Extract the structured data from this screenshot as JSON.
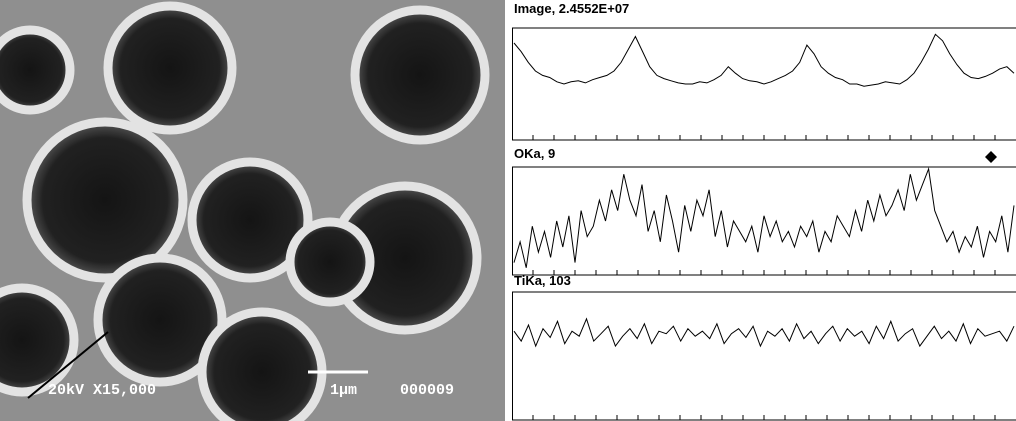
{
  "sem_image": {
    "label": "20kV X15,000",
    "scale_label": "1μm",
    "image_id": "000009"
  },
  "profiles": [
    {
      "title": "Image, 2.4552E+07",
      "values": [
        88,
        80,
        70,
        62,
        58,
        56,
        52,
        50,
        52,
        53,
        51,
        54,
        56,
        58,
        62,
        70,
        82,
        94,
        80,
        66,
        58,
        55,
        53,
        51,
        50,
        50,
        52,
        51,
        54,
        58,
        66,
        60,
        55,
        53,
        52,
        50,
        52,
        55,
        58,
        62,
        70,
        86,
        78,
        66,
        60,
        56,
        54,
        50,
        50,
        48,
        49,
        50,
        52,
        51,
        50,
        54,
        60,
        70,
        82,
        96,
        90,
        78,
        68,
        60,
        56,
        55,
        57,
        60,
        64,
        66,
        60
      ]
    },
    {
      "title": "OKa, 9",
      "values": [
        10,
        30,
        5,
        45,
        20,
        40,
        15,
        50,
        25,
        55,
        10,
        60,
        35,
        45,
        70,
        50,
        80,
        60,
        95,
        70,
        55,
        85,
        40,
        60,
        30,
        75,
        50,
        20,
        65,
        40,
        70,
        55,
        80,
        35,
        60,
        25,
        50,
        40,
        30,
        45,
        20,
        55,
        35,
        50,
        30,
        40,
        25,
        45,
        35,
        50,
        20,
        40,
        30,
        55,
        45,
        35,
        60,
        40,
        70,
        50,
        75,
        55,
        65,
        80,
        60,
        95,
        70,
        85,
        100,
        60,
        45,
        30,
        40,
        20,
        35,
        25,
        45,
        15,
        40,
        30,
        55,
        20,
        65
      ]
    },
    {
      "title": "TiKa, 103",
      "values": [
        70,
        62,
        75,
        58,
        72,
        65,
        78,
        60,
        70,
        66,
        80,
        62,
        68,
        74,
        58,
        66,
        72,
        64,
        76,
        60,
        70,
        68,
        74,
        62,
        72,
        66,
        70,
        64,
        76,
        60,
        68,
        72,
        65,
        74,
        58,
        70,
        66,
        72,
        62,
        76,
        64,
        70,
        60,
        68,
        74,
        62,
        72,
        66,
        70,
        60,
        74,
        64,
        78,
        62,
        68,
        72,
        58,
        66,
        74,
        64,
        70,
        62,
        76,
        60,
        72,
        66,
        68,
        70,
        62,
        74
      ]
    }
  ]
}
